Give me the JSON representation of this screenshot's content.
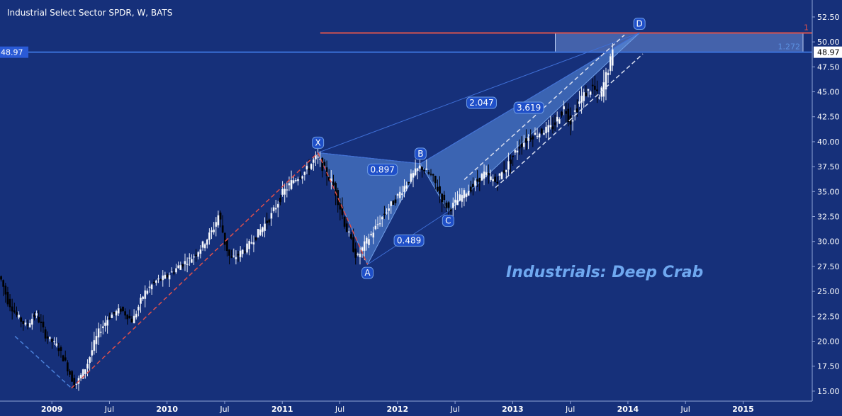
{
  "chart_data": {
    "type": "candlestick",
    "title": "Industrial Select Sector SPDR, W, BATS",
    "annotation": "Industrials: Deep Crab",
    "x_axis": {
      "range": [
        2008.55,
        2015.6
      ],
      "ticks": [
        {
          "t": 2009.0,
          "label": "2009",
          "bold": true
        },
        {
          "t": 2009.5,
          "label": "Jul",
          "bold": false
        },
        {
          "t": 2010.0,
          "label": "2010",
          "bold": true
        },
        {
          "t": 2010.5,
          "label": "Jul",
          "bold": false
        },
        {
          "t": 2011.0,
          "label": "2011",
          "bold": true
        },
        {
          "t": 2011.5,
          "label": "Jul",
          "bold": false
        },
        {
          "t": 2012.0,
          "label": "2012",
          "bold": true
        },
        {
          "t": 2012.5,
          "label": "Jul",
          "bold": false
        },
        {
          "t": 2013.0,
          "label": "2013",
          "bold": true
        },
        {
          "t": 2013.5,
          "label": "Jul",
          "bold": false
        },
        {
          "t": 2014.0,
          "label": "2014",
          "bold": true
        },
        {
          "t": 2014.5,
          "label": "Jul",
          "bold": false
        },
        {
          "t": 2015.0,
          "label": "2015",
          "bold": true
        }
      ]
    },
    "y_axis": {
      "range": [
        14.0,
        54.2
      ],
      "ticks": [
        "15.00",
        "17.50",
        "20.00",
        "22.50",
        "25.00",
        "27.50",
        "30.00",
        "32.50",
        "35.00",
        "37.50",
        "40.00",
        "42.50",
        "45.00",
        "47.50",
        "50.00",
        "52.50"
      ],
      "last_price": 48.97,
      "last_price_label": "48.97"
    },
    "price_anchors": [
      [
        2008.55,
        26.5
      ],
      [
        2008.62,
        24.0
      ],
      [
        2008.7,
        22.5
      ],
      [
        2008.78,
        21.5
      ],
      [
        2008.86,
        22.8
      ],
      [
        2008.95,
        20.5
      ],
      [
        2009.05,
        19.5
      ],
      [
        2009.12,
        17.8
      ],
      [
        2009.2,
        15.5
      ],
      [
        2009.3,
        17.5
      ],
      [
        2009.4,
        20.8
      ],
      [
        2009.5,
        22.5
      ],
      [
        2009.6,
        23.2
      ],
      [
        2009.7,
        22.0
      ],
      [
        2009.8,
        24.8
      ],
      [
        2009.9,
        26.0
      ],
      [
        2010.0,
        26.5
      ],
      [
        2010.1,
        27.5
      ],
      [
        2010.22,
        28.4
      ],
      [
        2010.3,
        29.5
      ],
      [
        2010.4,
        31.2
      ],
      [
        2010.45,
        32.8
      ],
      [
        2010.5,
        30.0
      ],
      [
        2010.55,
        28.2
      ],
      [
        2010.6,
        28.5
      ],
      [
        2010.7,
        29.5
      ],
      [
        2010.8,
        31.0
      ],
      [
        2010.9,
        32.5
      ],
      [
        2011.0,
        34.8
      ],
      [
        2011.1,
        36.2
      ],
      [
        2011.2,
        37.0
      ],
      [
        2011.3,
        38.5
      ],
      [
        2011.35,
        37.5
      ],
      [
        2011.45,
        35.5
      ],
      [
        2011.55,
        31.5
      ],
      [
        2011.65,
        28.3
      ],
      [
        2011.72,
        29.8
      ],
      [
        2011.8,
        31.2
      ],
      [
        2011.9,
        33.0
      ],
      [
        2012.0,
        34.5
      ],
      [
        2012.1,
        36.2
      ],
      [
        2012.2,
        37.5
      ],
      [
        2012.3,
        36.5
      ],
      [
        2012.4,
        34.0
      ],
      [
        2012.45,
        33.2
      ],
      [
        2012.55,
        34.5
      ],
      [
        2012.65,
        35.5
      ],
      [
        2012.75,
        36.8
      ],
      [
        2012.85,
        36.0
      ],
      [
        2012.95,
        37.5
      ],
      [
        2013.05,
        39.5
      ],
      [
        2013.15,
        40.5
      ],
      [
        2013.25,
        41.0
      ],
      [
        2013.35,
        41.5
      ],
      [
        2013.45,
        43.5
      ],
      [
        2013.5,
        42.0
      ],
      [
        2013.6,
        44.5
      ],
      [
        2013.7,
        45.5
      ],
      [
        2013.75,
        44.2
      ],
      [
        2013.8,
        46.2
      ],
      [
        2013.87,
        48.9
      ]
    ],
    "pattern": {
      "X": [
        2011.31,
        38.9
      ],
      "A": [
        2011.74,
        27.7
      ],
      "B": [
        2012.2,
        37.8
      ],
      "C": [
        2012.44,
        33.0
      ],
      "D": [
        2014.1,
        50.9
      ],
      "labels": {
        "X": "X",
        "A": "A",
        "B": "B",
        "C": "C",
        "D": "D"
      },
      "ratios": [
        {
          "label": "0.897",
          "at": [
            2011.87,
            37.2
          ]
        },
        {
          "label": "0.489",
          "at": [
            2012.1,
            30.1
          ]
        },
        {
          "label": "2.047",
          "at": [
            2012.73,
            43.9
          ]
        },
        {
          "label": "3.619",
          "at": [
            2013.14,
            43.4
          ]
        }
      ]
    },
    "prz": {
      "t_start": 2013.37,
      "t_end": 2015.52,
      "y_low": 48.97,
      "y_high": 50.9
    },
    "levels": [
      {
        "value": 50.9,
        "label": "1",
        "t_start": 2011.33,
        "color": "#d9534f"
      },
      {
        "value": 48.97,
        "label": "1.272",
        "t_start": 2008.55,
        "color": "#3a6fd8"
      }
    ],
    "dashed_lines": [
      {
        "from": [
          2009.17,
          15.3
        ],
        "to": [
          2011.31,
          38.9
        ],
        "color": "#e0504a"
      },
      {
        "from": [
          2011.31,
          38.9
        ],
        "to": [
          2011.74,
          27.7
        ],
        "color": "#e0504a"
      },
      {
        "from": [
          2008.68,
          20.5
        ],
        "to": [
          2009.17,
          15.3
        ],
        "color": "#4a7fd8"
      },
      {
        "from": [
          2012.58,
          36.2
        ],
        "to": [
          2013.97,
          50.7
        ],
        "color": "#d8def0"
      },
      {
        "from": [
          2012.85,
          35.4
        ],
        "to": [
          2014.13,
          48.8
        ],
        "color": "#d8def0"
      }
    ],
    "colors": {
      "background": "#16307a",
      "up_candle": "#ffffff",
      "down_candle": "#000000",
      "pattern_fill": "#5b8fe0",
      "axis_text": "#ffffff",
      "annotation": "#6fa8f0",
      "label_bg": "#1f4fc8"
    }
  }
}
